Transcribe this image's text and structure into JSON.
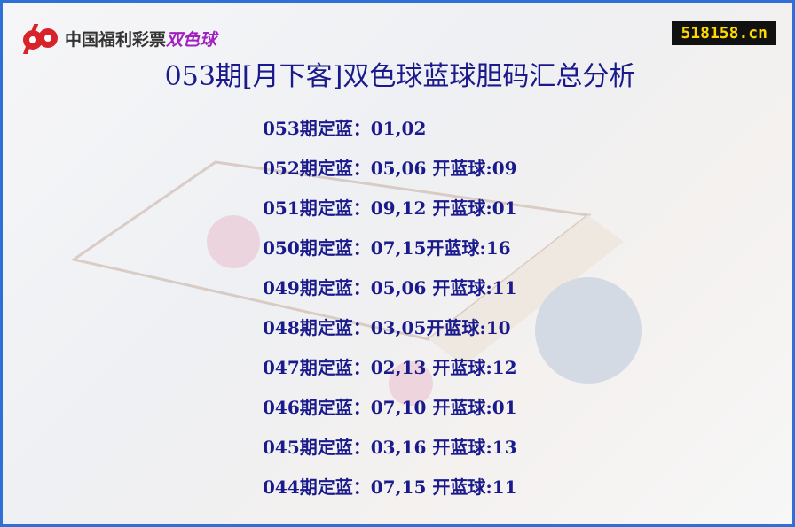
{
  "logo": {
    "text": "中国福利彩票",
    "brand": "双色球"
  },
  "site": "518158.cn",
  "title": "053期[月下客]双色球蓝球胆码汇总分析",
  "rows": [
    "053期定蓝：01,02",
    "052期定蓝：05,06 开蓝球:09",
    "051期定蓝：09,12 开蓝球:01",
    "050期定蓝：07,15开蓝球:16",
    "049期定蓝：05,06 开蓝球:11",
    "048期定蓝：03,05开蓝球:10",
    "047期定蓝：02,13 开蓝球:12",
    "046期定蓝：07,10 开蓝球:01",
    "045期定蓝：03,16 开蓝球:13",
    "044期定蓝：07,15 开蓝球:11"
  ]
}
